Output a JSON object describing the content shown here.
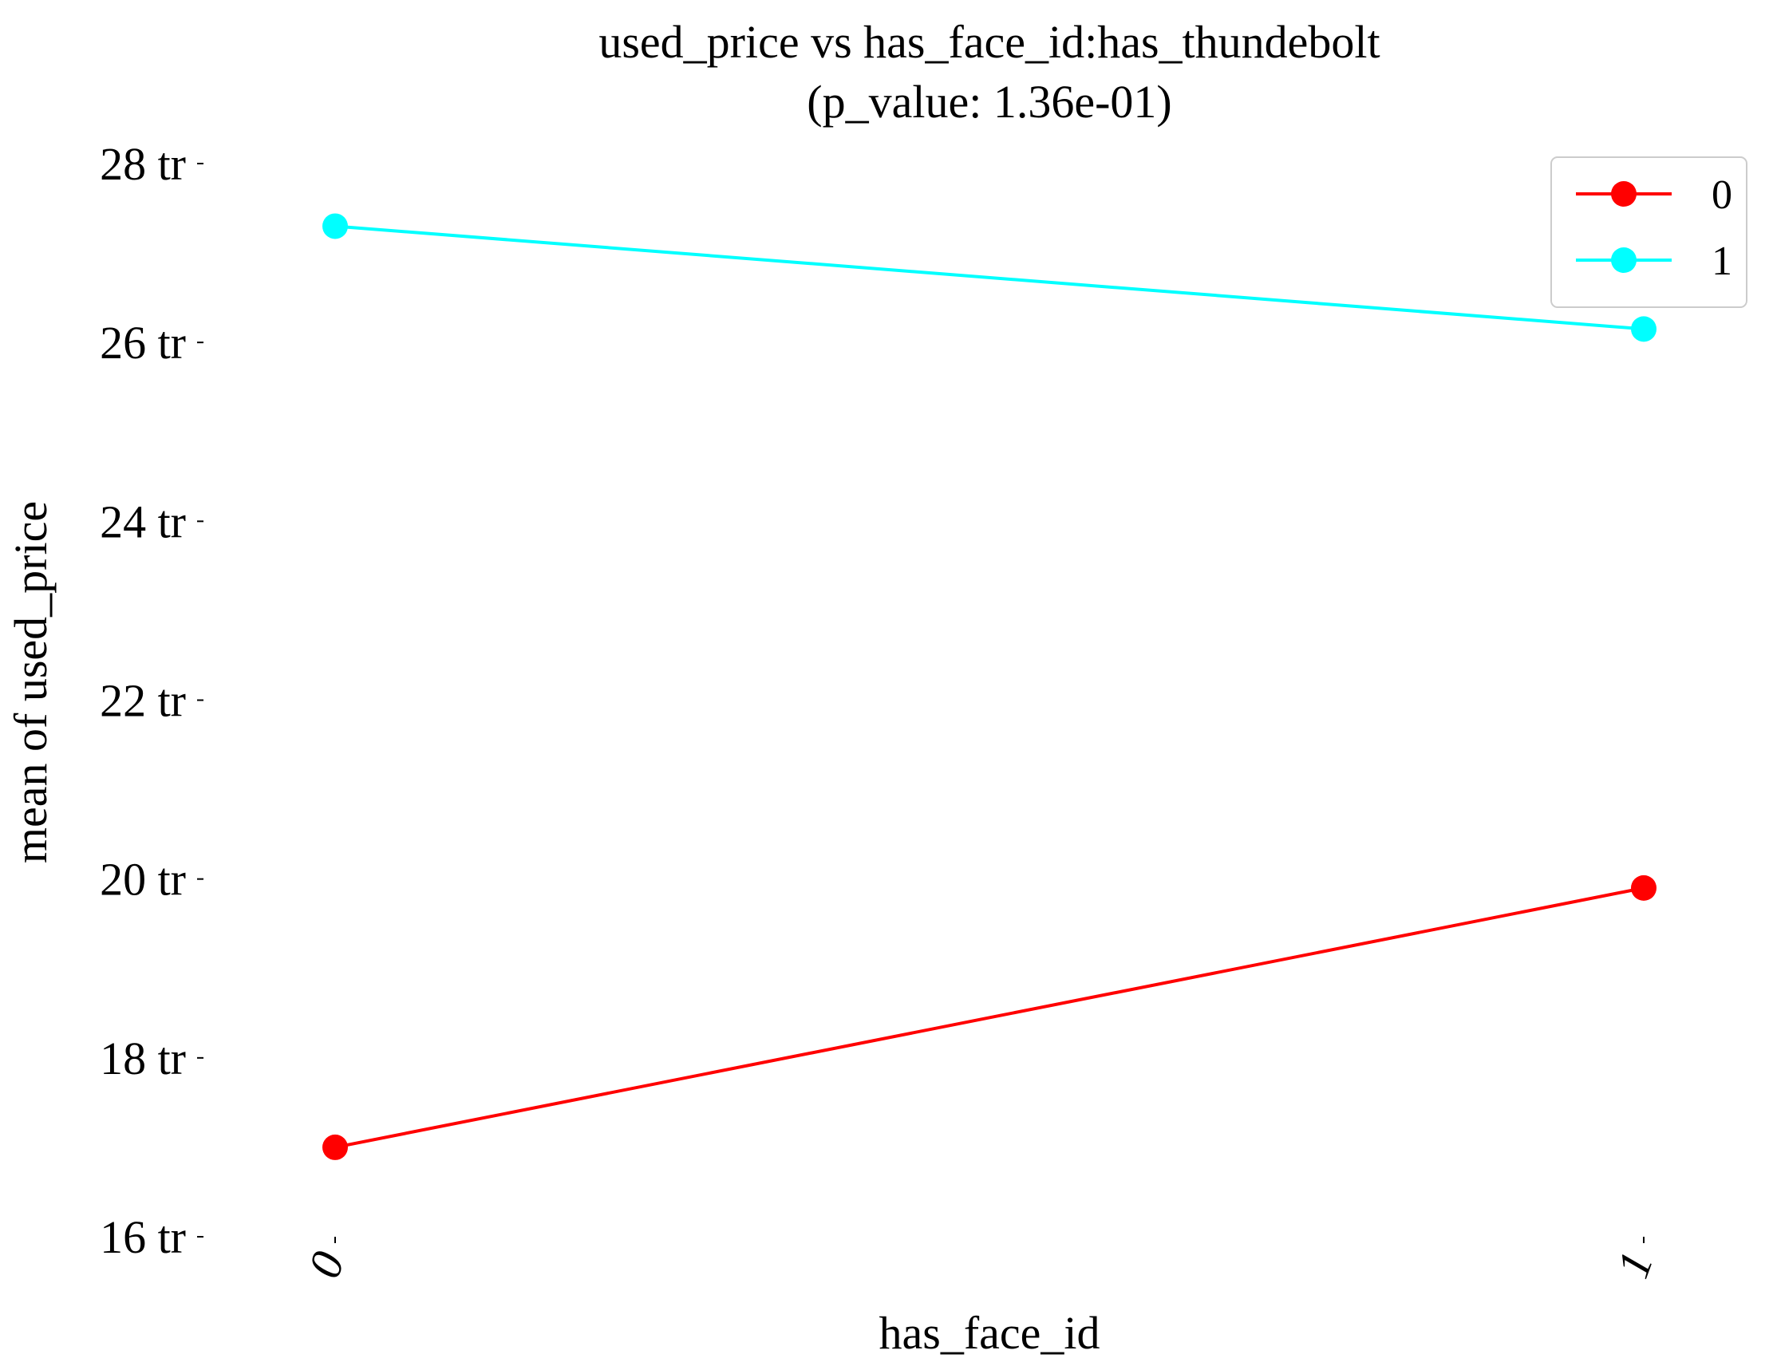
{
  "chart_data": {
    "type": "line",
    "title": "used_price vs has_face_id:has_thundebolt",
    "subtitle": "(p_value: 1.36e-01)",
    "xlabel": "has_face_id",
    "ylabel": "mean of used_price",
    "categories": [
      "0",
      "1"
    ],
    "y_ticks": [
      16,
      18,
      20,
      22,
      24,
      26,
      28
    ],
    "y_tick_labels": [
      "16 tr",
      "18 tr",
      "20 tr",
      "22 tr",
      "24 tr",
      "26 tr",
      "28 tr"
    ],
    "y_unit": "tr",
    "ylim": [
      16,
      28
    ],
    "grid": false,
    "legend_position": "top-right",
    "series": [
      {
        "name": "0",
        "color": "#ff0000",
        "values": [
          17.0,
          19.9
        ]
      },
      {
        "name": "1",
        "color": "#00ffff",
        "values": [
          27.3,
          26.15
        ]
      }
    ]
  }
}
